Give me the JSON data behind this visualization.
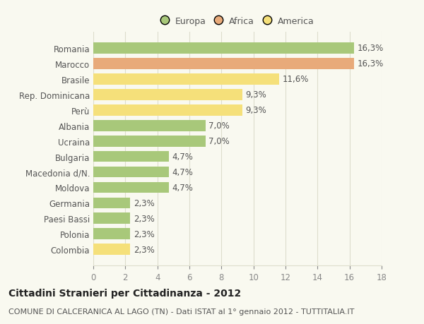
{
  "categories": [
    "Romania",
    "Marocco",
    "Brasile",
    "Rep. Dominicana",
    "Perù",
    "Albania",
    "Ucraina",
    "Bulgaria",
    "Macedonia d/N.",
    "Moldova",
    "Germania",
    "Paesi Bassi",
    "Polonia",
    "Colombia"
  ],
  "values": [
    16.3,
    16.3,
    11.6,
    9.3,
    9.3,
    7.0,
    7.0,
    4.7,
    4.7,
    4.7,
    2.3,
    2.3,
    2.3,
    2.3
  ],
  "labels": [
    "16,3%",
    "16,3%",
    "11,6%",
    "9,3%",
    "9,3%",
    "7,0%",
    "7,0%",
    "4,7%",
    "4,7%",
    "4,7%",
    "2,3%",
    "2,3%",
    "2,3%",
    "2,3%"
  ],
  "continents": [
    "Europa",
    "Africa",
    "America",
    "America",
    "America",
    "Europa",
    "Europa",
    "Europa",
    "Europa",
    "Europa",
    "Europa",
    "Europa",
    "Europa",
    "America"
  ],
  "colors": {
    "Europa": "#a8c87a",
    "Africa": "#e8aa7a",
    "America": "#f5e07a"
  },
  "legend": [
    "Europa",
    "Africa",
    "America"
  ],
  "legend_colors": [
    "#a8c87a",
    "#e8aa7a",
    "#f5e07a"
  ],
  "xlim": [
    0,
    18
  ],
  "xticks": [
    0,
    2,
    4,
    6,
    8,
    10,
    12,
    14,
    16,
    18
  ],
  "title": "Cittadini Stranieri per Cittadinanza - 2012",
  "subtitle": "COMUNE DI CALCERANICA AL LAGO (TN) - Dati ISTAT al 1° gennaio 2012 - TUTTITALIA.IT",
  "background_color": "#f9f9f0",
  "bar_height": 0.72,
  "grid_color": "#ddddcc",
  "title_fontsize": 10,
  "subtitle_fontsize": 8,
  "label_fontsize": 8.5,
  "tick_fontsize": 8.5,
  "legend_fontsize": 9
}
